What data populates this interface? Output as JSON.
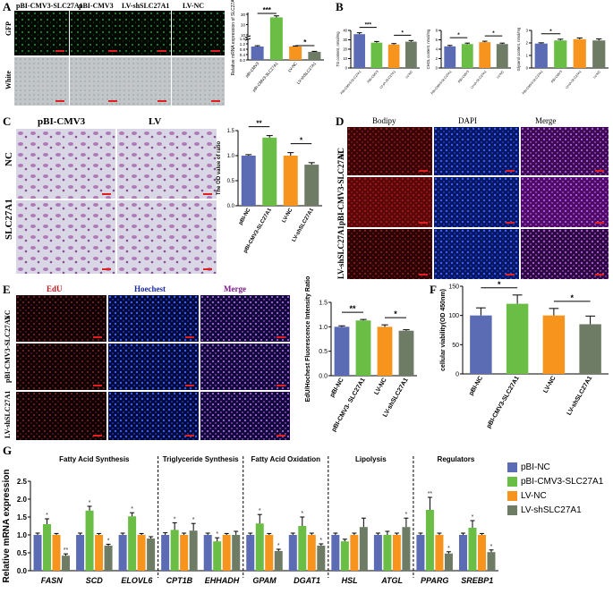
{
  "panels": {
    "A": "A",
    "B": "B",
    "C": "C",
    "D": "D",
    "E": "E",
    "F": "F",
    "G": "G"
  },
  "panel_a": {
    "headers": [
      "pBI-CMV3-SLC27A1",
      "pBI-CMV3",
      "LV-shSLC27A1",
      "LV-NC"
    ],
    "rows": [
      "GFP",
      "White"
    ]
  },
  "panel_c": {
    "headers": [
      "pBI-CMV3",
      "LV"
    ],
    "rows": [
      "NC",
      "SLC27A1"
    ]
  },
  "panel_d": {
    "headers": [
      "Bodipy",
      "DAPI",
      "Merge"
    ],
    "rows": [
      "NC",
      "pBI-CMV3-SLC27A1",
      "LV-shSLC27A1"
    ]
  },
  "panel_e": {
    "headers": [
      "EdU",
      "Hoechest",
      "Merge"
    ],
    "rows": [
      "NC",
      "pBI-CMV3-SLC27A1",
      "LV-shSLC27A1"
    ]
  },
  "colors": {
    "pbi_nc": "#5b6bb4",
    "pbi_cmv3": "#6abd45",
    "lv_nc": "#f7941d",
    "lv_sh": "#6e7b65"
  },
  "chart_data": [
    {
      "id": "A",
      "type": "bar",
      "categories": [
        "pBI-CMV3",
        "pBI-CMV3-SLC27A1",
        "LV-NC",
        "LV-shSLC27A1"
      ],
      "values": [
        1.0,
        27,
        1.0,
        0.6
      ],
      "errors": [
        0.06,
        1.5,
        0.04,
        0.04
      ],
      "ylabel": "Relative mRNA expression of SLC27A1",
      "yticks": [
        "0.0",
        "0.4",
        "0.8",
        "1.2",
        "1.6",
        "10",
        "20",
        "30"
      ],
      "sig": [
        "***",
        "*"
      ]
    },
    {
      "id": "B1",
      "type": "bar",
      "categories": [
        "PBI-CMV3-SLC27A1",
        "PBI-CMV3",
        "LV-sh-SLC27A1",
        "LV-NC"
      ],
      "values": [
        36,
        27,
        25,
        28
      ],
      "errors": [
        1.5,
        1.2,
        1.0,
        1.2
      ],
      "ylabel": "TG content, nmol/mg",
      "yticks": [
        "0",
        "10",
        "20",
        "30",
        "40"
      ],
      "ylim": [
        0,
        40
      ],
      "sig": [
        "***",
        "*"
      ]
    },
    {
      "id": "B2",
      "type": "bar",
      "categories": [
        "PBI-CMV3-SLC27A1",
        "PBI-CMV3",
        "LV-sh-SLC27A1",
        "LV-NC"
      ],
      "values": [
        4.6,
        5.1,
        5.5,
        5.1
      ],
      "errors": [
        0.2,
        0.2,
        0.2,
        0.2
      ],
      "ylabel": "CHOL content, nmol/mg",
      "yticks": [
        "0",
        "2",
        "4",
        "6",
        "8"
      ],
      "ylim": [
        0,
        8
      ],
      "sig": [
        "*",
        "*"
      ]
    },
    {
      "id": "B3",
      "type": "bar",
      "categories": [
        "PBI-CMV3-SLC27A1",
        "PBI-CMV3",
        "LV-sh-SLC27A1",
        "LV-NC"
      ],
      "values": [
        1.95,
        2.2,
        2.3,
        2.2
      ],
      "errors": [
        0.06,
        0.1,
        0.1,
        0.12
      ],
      "ylabel": "Glycerol content, nmol/mg",
      "yticks": [
        "0",
        "1",
        "2",
        "3"
      ],
      "ylim": [
        0,
        3
      ],
      "sig": [
        "*"
      ]
    },
    {
      "id": "C",
      "type": "bar",
      "categories": [
        "pBI-NC",
        "pBI-CMV3-SLC27A1",
        "LV-NC",
        "LV-shSLC27A1"
      ],
      "values": [
        1.0,
        1.36,
        1.0,
        0.82
      ],
      "errors": [
        0.02,
        0.04,
        0.06,
        0.04
      ],
      "ylabel": "The OD value of ratio",
      "yticks": [
        "0.0",
        "0.5",
        "1.0",
        "1.5"
      ],
      "ylim": [
        0,
        1.5
      ],
      "sig": [
        "**",
        "*"
      ]
    },
    {
      "id": "E",
      "type": "bar",
      "categories": [
        "pBI-NC",
        "pBI-CMV3- SLC27A1",
        "LV-NC",
        "LV-shSLC27A1"
      ],
      "values": [
        1.0,
        1.13,
        1.0,
        0.92
      ],
      "errors": [
        0.02,
        0.02,
        0.04,
        0.02
      ],
      "ylabel": "EdU/Hochest Fluorescence Intensity Ratio",
      "yticks": [
        "0.0",
        "0.5",
        "1.0",
        "1.5"
      ],
      "ylim": [
        0,
        1.5
      ],
      "sig": [
        "**",
        "*"
      ]
    },
    {
      "id": "F",
      "type": "bar",
      "categories": [
        "pBI-NC",
        "pBI-CMV3-SLC27A1",
        "LV-NC",
        "LV-shSLC27A1"
      ],
      "values": [
        100,
        120,
        100,
        85
      ],
      "errors": [
        13,
        15,
        12,
        14
      ],
      "ylabel": "cellular viability(OD 450nm)",
      "yticks": [
        "0",
        "50",
        "100",
        "150"
      ],
      "ylim": [
        0,
        150
      ],
      "sig": [
        "*",
        "*"
      ]
    },
    {
      "id": "G",
      "type": "bar",
      "ylabel": "Relative mRNA expression",
      "yticks": [
        "0.0",
        "0.5",
        "1.0",
        "1.5",
        "2.0",
        "2.5"
      ],
      "ylim": [
        0,
        2.5
      ],
      "groups": [
        "Fatty Acid Synthesis",
        "Triglyceride Synthesis",
        "Fatty Acid Oxidation",
        "Lipolysis",
        "Regulators"
      ],
      "categories": [
        "FASN",
        "SCD",
        "ELOVL6",
        "CPT1B",
        "EHHADH",
        "GPAM",
        "DGAT1",
        "HSL",
        "ATGL",
        "PPARG",
        "SREBP1"
      ],
      "series": [
        {
          "name": "pBI-NC",
          "values": [
            1.0,
            1.0,
            1.0,
            1.0,
            1.0,
            1.0,
            1.0,
            1.0,
            1.0,
            1.0,
            1.0
          ],
          "errors": [
            0.05,
            0.05,
            0.05,
            0.06,
            0.05,
            0.05,
            0.05,
            0.05,
            0.05,
            0.05,
            0.05
          ]
        },
        {
          "name": "pBI-CMV3-SLC27A1",
          "values": [
            1.3,
            1.68,
            1.52,
            1.14,
            0.82,
            1.32,
            1.25,
            0.82,
            1.0,
            1.7,
            1.2
          ],
          "errors": [
            0.15,
            0.12,
            0.1,
            0.2,
            0.1,
            0.25,
            0.25,
            0.06,
            0.1,
            0.35,
            0.2
          ]
        },
        {
          "name": "LV-NC",
          "values": [
            1.0,
            1.0,
            1.0,
            1.0,
            1.0,
            1.0,
            1.0,
            1.0,
            1.0,
            1.0,
            1.0
          ],
          "errors": [
            0.04,
            0.04,
            0.04,
            0.05,
            0.04,
            0.04,
            0.05,
            0.05,
            0.05,
            0.05,
            0.04
          ]
        },
        {
          "name": "LV-shSLC27A1",
          "values": [
            0.42,
            0.7,
            0.9,
            1.12,
            1.0,
            0.55,
            0.7,
            1.22,
            1.22,
            0.48,
            0.52
          ],
          "errors": [
            0.05,
            0.04,
            0.05,
            0.2,
            0.1,
            0.05,
            0.05,
            0.25,
            0.25,
            0.05,
            0.06
          ]
        }
      ],
      "sig_cmv3": [
        "*",
        "*",
        "*",
        "*",
        "*",
        "*",
        "*",
        "",
        "",
        "**",
        "*"
      ],
      "sig_sh": [
        "**",
        "*",
        "",
        "*",
        "",
        "*",
        "*",
        "",
        "*",
        "*",
        "*"
      ],
      "legend": [
        "pBI-NC",
        "pBI-CMV3-SLC27A1",
        "LV-NC",
        "LV-shSLC27A1"
      ]
    }
  ]
}
